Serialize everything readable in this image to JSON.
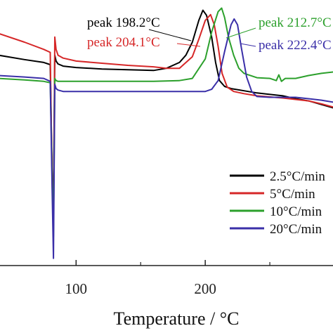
{
  "chart_data": {
    "type": "line",
    "title": "",
    "xlabel": "Temperature / °C",
    "ylabel": "",
    "xlim": [
      40,
      300
    ],
    "ylim": [
      -2.6,
      1.1
    ],
    "x_ticks": [
      "100",
      "200"
    ],
    "grid": false,
    "legend_position": "right",
    "legend": [
      "2.5°C/min",
      "5°C/min",
      "10°C/min",
      "20°C/min"
    ],
    "series": [
      {
        "name": "2.5°C/min",
        "color": "#000000",
        "x": [
          40,
          60,
          75,
          80,
          81.5,
          82.5,
          83.5,
          84.5,
          86,
          90,
          100,
          120,
          140,
          160,
          170,
          180,
          185,
          190,
          195,
          198.2,
          201,
          205,
          208,
          211,
          215,
          220,
          230,
          240,
          260,
          270,
          280,
          290,
          300
        ],
        "y": [
          0.3,
          0.24,
          0.2,
          0.17,
          -1.4,
          -1.7,
          0.3,
          0.22,
          0.18,
          0.15,
          0.13,
          0.11,
          0.1,
          0.09,
          0.12,
          0.2,
          0.3,
          0.48,
          0.78,
          0.92,
          0.85,
          0.55,
          0.2,
          -0.05,
          -0.13,
          -0.16,
          -0.19,
          -0.22,
          -0.26,
          -0.3,
          -0.33,
          -0.38,
          -0.43
        ]
      },
      {
        "name": "5°C/min",
        "color": "#d62728",
        "x": [
          40,
          60,
          75,
          80,
          81.5,
          82.5,
          83.5,
          84.5,
          86,
          90,
          100,
          120,
          140,
          160,
          170,
          180,
          190,
          195,
          200,
          204.1,
          207,
          210,
          213,
          217,
          222,
          230,
          240,
          260,
          280,
          290,
          300
        ],
        "y": [
          0.6,
          0.48,
          0.38,
          0.34,
          -1.5,
          -2.05,
          0.55,
          0.38,
          0.3,
          0.26,
          0.22,
          0.19,
          0.16,
          0.14,
          0.12,
          0.12,
          0.28,
          0.52,
          0.78,
          0.86,
          0.72,
          0.42,
          0.05,
          -0.14,
          -0.2,
          -0.23,
          -0.26,
          -0.29,
          -0.33,
          -0.37,
          -0.42
        ]
      },
      {
        "name": "10°C/min",
        "color": "#2ca02c",
        "x": [
          40,
          60,
          75,
          80,
          81.5,
          82.5,
          83.5,
          84.5,
          86,
          90,
          100,
          120,
          140,
          160,
          180,
          190,
          200,
          205,
          210,
          212.7,
          215,
          218,
          222,
          226,
          230,
          240,
          250,
          255,
          257,
          259,
          262,
          270,
          280,
          290,
          300
        ],
        "y": [
          -0.02,
          -0.04,
          -0.06,
          -0.08,
          -1.4,
          -2.2,
          -0.02,
          -0.05,
          -0.06,
          -0.06,
          -0.06,
          -0.06,
          -0.06,
          -0.06,
          -0.05,
          -0.02,
          0.25,
          0.62,
          0.9,
          0.95,
          0.82,
          0.55,
          0.3,
          0.12,
          0.05,
          -0.01,
          -0.02,
          -0.05,
          0.03,
          -0.06,
          -0.02,
          -0.02,
          0.02,
          0.05,
          0.07
        ]
      },
      {
        "name": "20°C/min",
        "color": "#3a2fa8",
        "x": [
          40,
          60,
          75,
          80,
          81.5,
          82.5,
          83.5,
          84.5,
          86,
          90,
          100,
          120,
          140,
          160,
          180,
          200,
          205,
          210,
          215,
          220,
          222.4,
          225,
          228,
          232,
          236,
          240,
          250,
          260,
          270,
          280,
          290,
          300
        ],
        "y": [
          0.02,
          0.0,
          -0.02,
          -0.06,
          -1.6,
          -2.5,
          -0.1,
          -0.16,
          -0.18,
          -0.2,
          -0.2,
          -0.2,
          -0.2,
          -0.2,
          -0.2,
          -0.2,
          -0.17,
          -0.05,
          0.35,
          0.72,
          0.8,
          0.72,
          0.4,
          0.0,
          -0.2,
          -0.27,
          -0.28,
          -0.28,
          -0.28,
          -0.3,
          -0.32,
          -0.35
        ]
      }
    ],
    "annotations": [
      {
        "text": "peak 198.2°C",
        "color": "#000000",
        "x": 198.2,
        "y": 0.92
      },
      {
        "text": "peak 204.1°C",
        "color": "#d62728",
        "x": 204.1,
        "y": 0.86
      },
      {
        "text": "peak 212.7°C",
        "color": "#2ca02c",
        "x": 212.7,
        "y": 0.95
      },
      {
        "text": "peak 222.4°C",
        "color": "#3a2fa8",
        "x": 222.4,
        "y": 0.8
      }
    ]
  }
}
